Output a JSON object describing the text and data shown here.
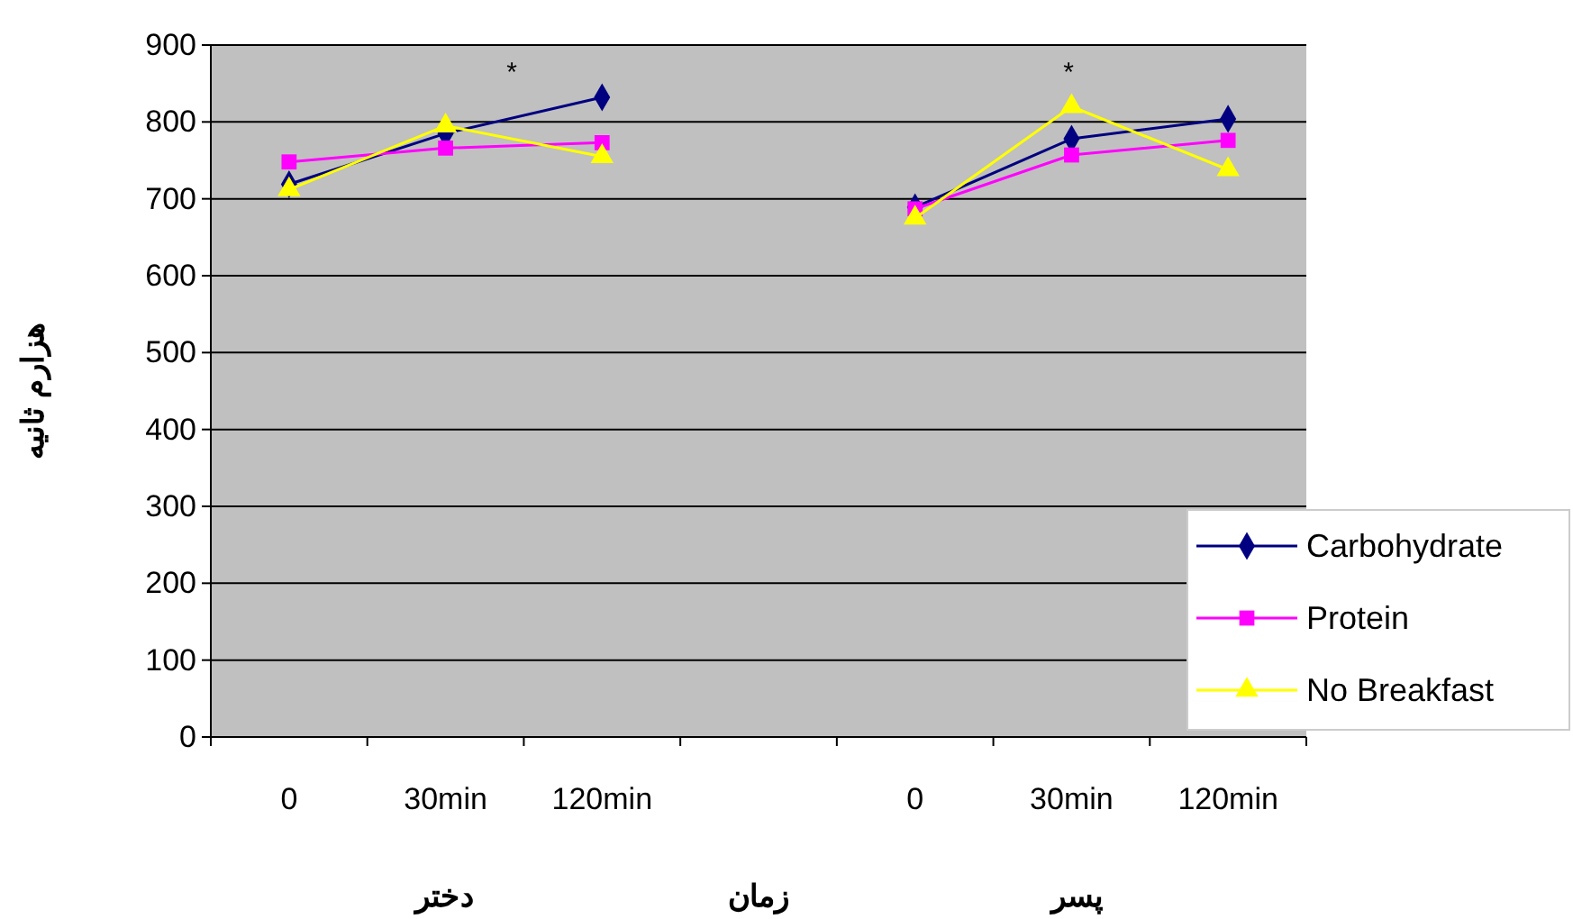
{
  "chart_data": {
    "type": "line",
    "xlabel": "زمان",
    "ylabel": "هزارم ثانیه",
    "categories": [
      "0",
      "30min",
      "120min",
      null,
      "0",
      "30min",
      "120min"
    ],
    "series": [
      {
        "name": "Carbohydrate",
        "color": "#000080",
        "marker": "diamond",
        "values": [
          719,
          785,
          832,
          null,
          689,
          778,
          804
        ]
      },
      {
        "name": "Protein",
        "color": "#ff00ff",
        "marker": "square",
        "values": [
          748,
          766,
          773,
          null,
          687,
          757,
          776
        ]
      },
      {
        "name": "No Breakfast",
        "color": "#ffff00",
        "marker": "triangle",
        "values": [
          712,
          795,
          755,
          null,
          675,
          820,
          738
        ]
      }
    ],
    "ylim": [
      0,
      900
    ],
    "yticks": [
      0,
      100,
      200,
      300,
      400,
      500,
      600,
      700,
      800,
      900
    ],
    "grid": "y",
    "legend": "bottom right",
    "annotations": [
      "*",
      "*",
      "دختر",
      "پسر"
    ]
  }
}
